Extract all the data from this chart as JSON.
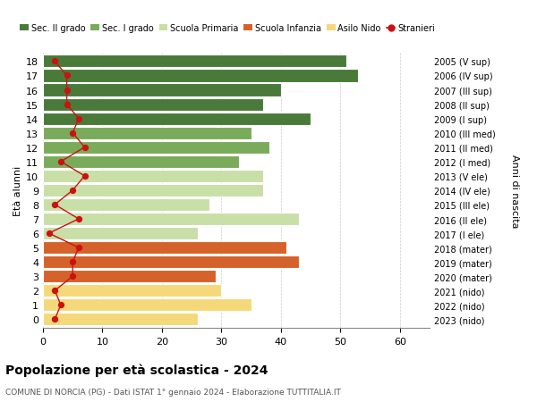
{
  "ages": [
    18,
    17,
    16,
    15,
    14,
    13,
    12,
    11,
    10,
    9,
    8,
    7,
    6,
    5,
    4,
    3,
    2,
    1,
    0
  ],
  "right_labels": [
    "2005 (V sup)",
    "2006 (IV sup)",
    "2007 (III sup)",
    "2008 (II sup)",
    "2009 (I sup)",
    "2010 (III med)",
    "2011 (II med)",
    "2012 (I med)",
    "2013 (V ele)",
    "2014 (IV ele)",
    "2015 (III ele)",
    "2016 (II ele)",
    "2017 (I ele)",
    "2018 (mater)",
    "2019 (mater)",
    "2020 (mater)",
    "2021 (nido)",
    "2022 (nido)",
    "2023 (nido)"
  ],
  "bar_values": [
    51,
    53,
    40,
    37,
    45,
    35,
    38,
    33,
    37,
    37,
    28,
    43,
    26,
    41,
    43,
    29,
    30,
    35,
    26
  ],
  "stranieri_values": [
    2,
    4,
    4,
    4,
    6,
    5,
    7,
    3,
    7,
    5,
    2,
    6,
    1,
    6,
    5,
    5,
    2,
    3,
    2
  ],
  "bar_colors": [
    "#4a7a3a",
    "#4a7a3a",
    "#4a7a3a",
    "#4a7a3a",
    "#4a7a3a",
    "#7aab5a",
    "#7aab5a",
    "#7aab5a",
    "#c8dfa8",
    "#c8dfa8",
    "#c8dfa8",
    "#c8dfa8",
    "#c8dfa8",
    "#d4622a",
    "#d4622a",
    "#d4622a",
    "#f5d87a",
    "#f5d87a",
    "#f5d87a"
  ],
  "legend_labels": [
    "Sec. II grado",
    "Sec. I grado",
    "Scuola Primaria",
    "Scuola Infanzia",
    "Asilo Nido",
    "Stranieri"
  ],
  "legend_colors": [
    "#4a7a3a",
    "#7aab5a",
    "#c8dfa8",
    "#d4622a",
    "#f5d87a",
    "#cc1111"
  ],
  "title": "Popolazione per età scolastica - 2024",
  "subtitle": "COMUNE DI NORCIA (PG) - Dati ISTAT 1° gennaio 2024 - Elaborazione TUTTITALIA.IT",
  "ylabel": "Età alunni",
  "right_axis_label": "Anni di nascita",
  "xlim": [
    0,
    65
  ],
  "xticks": [
    0,
    10,
    20,
    30,
    40,
    50,
    60
  ],
  "stranieri_color": "#cc1111",
  "bg_color": "#ffffff",
  "bar_edge_color": "#ffffff",
  "grid_color": "#cccccc"
}
